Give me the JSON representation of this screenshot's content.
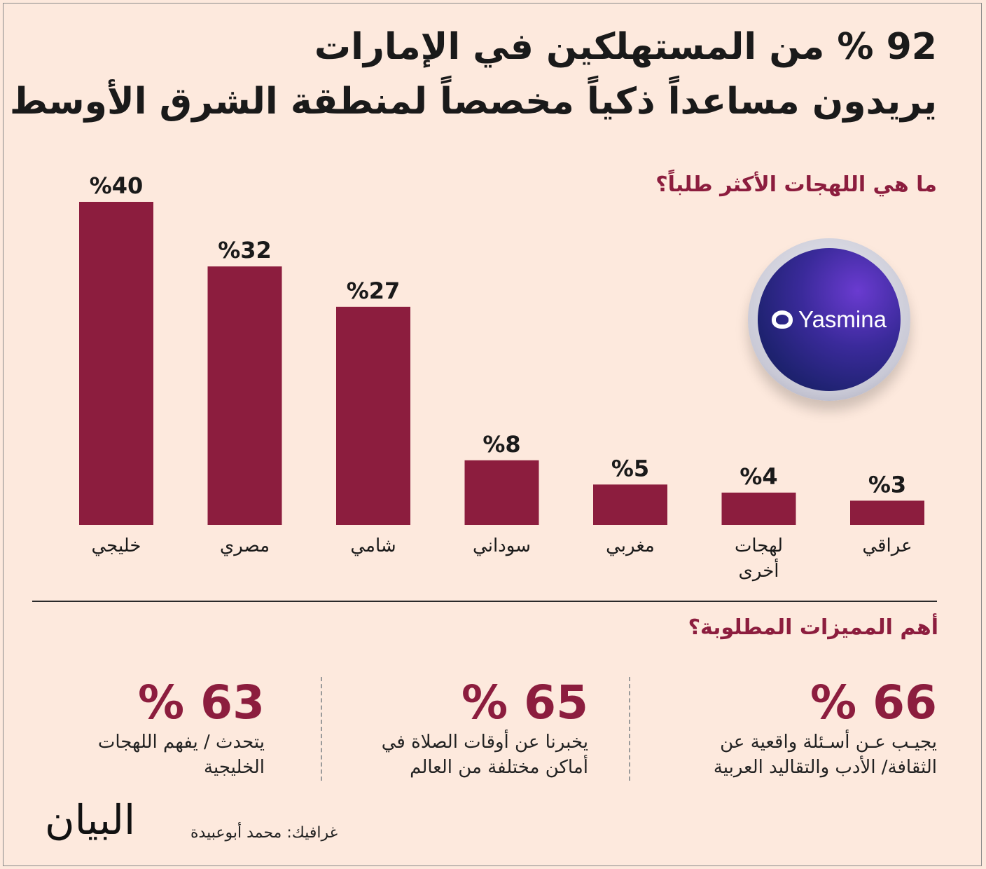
{
  "title": {
    "line1": "92 % من المستهلكين في الإمارات",
    "line2": "يريدون مساعداً ذكياً مخصصاً لمنطقة الشرق الأوسط"
  },
  "chart_question": "ما هي اللهجات الأكثر طلباً؟",
  "logo": {
    "text": "Yasmina",
    "icon": "yasmina-logo-icon"
  },
  "chart_data": {
    "type": "bar",
    "title": "ما هي اللهجات الأكثر طلباً؟",
    "categories": [
      "خليجي",
      "مصري",
      "شامي",
      "سوداني",
      "مغربي",
      "لهجات أخرى",
      "عراقي"
    ],
    "values": [
      40,
      32,
      27,
      8,
      5,
      4,
      3
    ],
    "value_labels": [
      "%40",
      "%32",
      "%27",
      "%8",
      "%5",
      "%4",
      "%3"
    ],
    "category_lines": [
      [
        "خليجي"
      ],
      [
        "مصري"
      ],
      [
        "شامي"
      ],
      [
        "سوداني"
      ],
      [
        "مغربي"
      ],
      [
        "لهجات",
        "أخرى"
      ],
      [
        "عراقي"
      ]
    ],
    "ylim": [
      0,
      40
    ],
    "grid": false,
    "bar_color": "#8c1d3e"
  },
  "features": {
    "question": "أهم المميزات المطلوبة؟",
    "items": [
      {
        "pct": "66 %",
        "line1": "يجيـب عـن أسـئلة واقعية عن",
        "line2": "الثقافة/ الأدب والتقاليد العربية"
      },
      {
        "pct": "65 %",
        "line1": "يخبرنا عن أوقات الصلاة في",
        "line2": "أماكن مختلفة من العالم"
      },
      {
        "pct": "63 %",
        "line1": "يتحدث / يفهم اللهجات",
        "line2": "الخليجية"
      }
    ]
  },
  "credit": "غرافيك: محمد أبوعبيدة",
  "brand": "البيان",
  "colors": {
    "accent": "#8c1d3e",
    "background": "#fde9dd"
  }
}
